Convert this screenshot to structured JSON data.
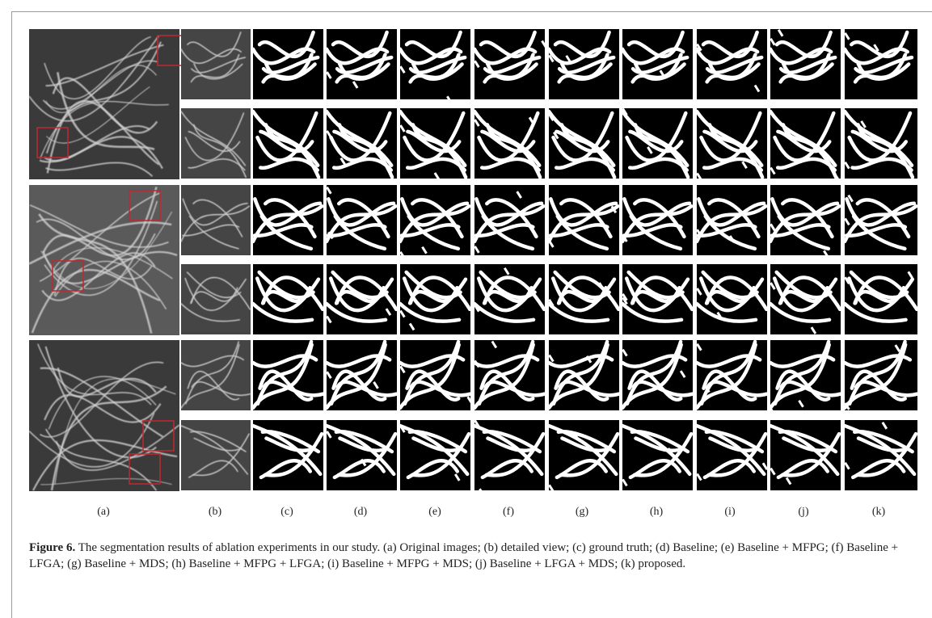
{
  "figure": {
    "column_labels": [
      "(a)",
      "(b)",
      "(c)",
      "(d)",
      "(e)",
      "(f)",
      "(g)",
      "(h)",
      "(i)",
      "(j)",
      "(k)"
    ],
    "caption": {
      "label": "Figure 6.",
      "text": "The segmentation results of ablation experiments in our study. (a) Original images; (b) detailed view; (c) ground truth; (d) Baseline; (e) Baseline + MFPG; (f) Baseline + LFGA; (g) Baseline + MDS; (h) Baseline + MFPG + LFGA; (i) Baseline + MFPG + MDS; (j) Baseline + LFGA + MDS; (k) proposed."
    }
  }
}
